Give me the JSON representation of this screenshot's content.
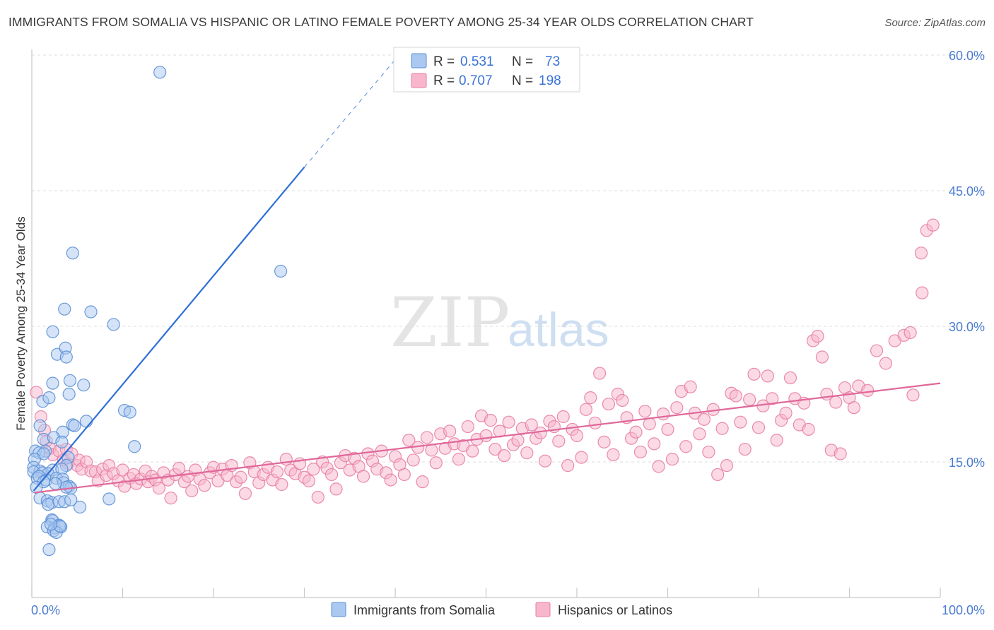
{
  "header": {
    "title": "IMMIGRANTS FROM SOMALIA VS HISPANIC OR LATINO FEMALE POVERTY AMONG 25-34 YEAR OLDS CORRELATION CHART",
    "source": "Source: ZipAtlas.com"
  },
  "watermark": {
    "zip": "ZIP",
    "atlas": "atlas"
  },
  "legend": {
    "rows": [
      {
        "r_label": "R =",
        "r_value": "0.531",
        "n_label": "N =",
        "n_value": "73"
      },
      {
        "r_label": "R =",
        "r_value": "0.707",
        "n_label": "N =",
        "n_value": "198"
      }
    ]
  },
  "bottom_legend": [
    "Immigrants from Somalia",
    "Hispanics or Latinos"
  ],
  "colors": {
    "somalia_fill": "#aac8f0",
    "somalia_stroke": "#5b8fd6",
    "somalia_line": "#2f6fd6",
    "hispanic_fill": "#f7b6cc",
    "hispanic_stroke": "#e87ea4",
    "hispanic_line": "#e0679a",
    "tick_text": "#4a7bd1",
    "grid": "#dcdcdc"
  },
  "chart_data": {
    "type": "scatter",
    "title": "IMMIGRANTS FROM SOMALIA VS HISPANIC OR LATINO FEMALE POVERTY AMONG 25-34 YEAR OLDS CORRELATION CHART",
    "xlabel": "",
    "ylabel": "Female Poverty Among 25-34 Year Olds",
    "xlim": [
      0,
      100
    ],
    "ylim": [
      0,
      60
    ],
    "x_tick_labels": [
      "0.0%",
      "100.0%"
    ],
    "y_ticks": [
      15,
      30,
      45,
      60
    ],
    "y_tick_labels": [
      "15.0%",
      "30.0%",
      "45.0%",
      "60.0%"
    ],
    "grid": true,
    "legend_position": "top-center",
    "series": [
      {
        "name": "Immigrants from Somalia",
        "r": 0.531,
        "n": 73,
        "trend": {
          "x": [
            0.2,
            30
          ],
          "y": [
            11.8,
            47.6
          ],
          "dashed_to": {
            "x": 40,
            "y": 59.5
          }
        },
        "points": [
          [
            14.1,
            58.1
          ],
          [
            27.4,
            36.1
          ],
          [
            4.5,
            38.1
          ],
          [
            3.6,
            31.9
          ],
          [
            6.5,
            31.6
          ],
          [
            9.0,
            30.2
          ],
          [
            2.3,
            29.4
          ],
          [
            2.8,
            26.9
          ],
          [
            3.7,
            27.6
          ],
          [
            3.8,
            26.6
          ],
          [
            2.3,
            23.7
          ],
          [
            4.2,
            24.0
          ],
          [
            5.7,
            23.5
          ],
          [
            4.1,
            22.5
          ],
          [
            1.2,
            21.7
          ],
          [
            1.9,
            22.1
          ],
          [
            10.2,
            20.7
          ],
          [
            10.8,
            20.5
          ],
          [
            4.5,
            19.1
          ],
          [
            6.0,
            19.5
          ],
          [
            4.7,
            19.0
          ],
          [
            0.9,
            19.0
          ],
          [
            3.4,
            18.3
          ],
          [
            1.3,
            17.5
          ],
          [
            2.4,
            17.7
          ],
          [
            11.3,
            16.7
          ],
          [
            3.3,
            17.2
          ],
          [
            0.4,
            16.2
          ],
          [
            1.5,
            16.2
          ],
          [
            0.8,
            16.0
          ],
          [
            1.3,
            15.9
          ],
          [
            4.0,
            15.5
          ],
          [
            0.3,
            15.3
          ],
          [
            0.2,
            14.4
          ],
          [
            0.9,
            14.0
          ],
          [
            0.2,
            13.9
          ],
          [
            1.2,
            13.8
          ],
          [
            2.3,
            14.1
          ],
          [
            3.8,
            14.6
          ],
          [
            1.8,
            13.7
          ],
          [
            3.3,
            14.2
          ],
          [
            0.6,
            13.2
          ],
          [
            0.8,
            13.4
          ],
          [
            1.6,
            13.0
          ],
          [
            1.3,
            12.8
          ],
          [
            2.7,
            13.2
          ],
          [
            3.4,
            13.1
          ],
          [
            3.5,
            12.7
          ],
          [
            0.5,
            12.2
          ],
          [
            4.1,
            12.3
          ],
          [
            4.3,
            12.1
          ],
          [
            3.8,
            12.2
          ],
          [
            2.6,
            12.6
          ],
          [
            0.9,
            11.0
          ],
          [
            1.7,
            10.7
          ],
          [
            2.2,
            10.5
          ],
          [
            1.8,
            10.3
          ],
          [
            3.0,
            10.6
          ],
          [
            3.6,
            10.6
          ],
          [
            4.3,
            10.8
          ],
          [
            5.3,
            10.0
          ],
          [
            8.5,
            10.9
          ],
          [
            2.2,
            8.6
          ],
          [
            2.3,
            8.5
          ],
          [
            1.7,
            7.8
          ],
          [
            2.5,
            7.7
          ],
          [
            3.0,
            8.0
          ],
          [
            3.2,
            7.8
          ],
          [
            2.4,
            7.4
          ],
          [
            2.7,
            7.2
          ],
          [
            3.1,
            7.9
          ],
          [
            1.9,
            5.3
          ],
          [
            2.1,
            8.1
          ]
        ]
      },
      {
        "name": "Hispanics or Latinos",
        "r": 0.707,
        "n": 198,
        "trend": {
          "x": [
            0.3,
            100
          ],
          "y": [
            11.6,
            23.7
          ]
        },
        "points": [
          [
            0.5,
            22.7
          ],
          [
            1.0,
            20.0
          ],
          [
            1.4,
            18.5
          ],
          [
            1.6,
            17.3
          ],
          [
            2.0,
            16.5
          ],
          [
            2.3,
            15.8
          ],
          [
            3.0,
            16.2
          ],
          [
            3.5,
            15.2
          ],
          [
            3.8,
            16.4
          ],
          [
            4.0,
            14.8
          ],
          [
            4.4,
            15.9
          ],
          [
            5.0,
            14.6
          ],
          [
            5.2,
            15.2
          ],
          [
            5.5,
            14.2
          ],
          [
            6.0,
            15.0
          ],
          [
            6.5,
            14.0
          ],
          [
            7.0,
            13.9
          ],
          [
            7.3,
            12.9
          ],
          [
            7.8,
            14.2
          ],
          [
            8.2,
            13.5
          ],
          [
            8.5,
            14.6
          ],
          [
            9.0,
            13.7
          ],
          [
            9.5,
            12.9
          ],
          [
            10.0,
            14.1
          ],
          [
            10.2,
            12.3
          ],
          [
            10.8,
            13.2
          ],
          [
            11.2,
            13.6
          ],
          [
            11.5,
            12.6
          ],
          [
            12.0,
            13.1
          ],
          [
            12.5,
            14.0
          ],
          [
            12.8,
            12.8
          ],
          [
            13.2,
            13.4
          ],
          [
            13.6,
            13.0
          ],
          [
            14.0,
            12.1
          ],
          [
            14.5,
            13.8
          ],
          [
            15.0,
            13.0
          ],
          [
            15.3,
            11.0
          ],
          [
            15.8,
            13.6
          ],
          [
            16.2,
            14.3
          ],
          [
            16.8,
            12.8
          ],
          [
            17.2,
            13.4
          ],
          [
            17.6,
            11.8
          ],
          [
            18.0,
            14.1
          ],
          [
            18.5,
            13.1
          ],
          [
            19.0,
            12.4
          ],
          [
            19.6,
            13.8
          ],
          [
            20.0,
            14.4
          ],
          [
            20.5,
            12.9
          ],
          [
            21.0,
            14.2
          ],
          [
            21.5,
            13.5
          ],
          [
            22.0,
            14.6
          ],
          [
            22.5,
            12.8
          ],
          [
            23.0,
            13.3
          ],
          [
            23.5,
            11.5
          ],
          [
            24.0,
            14.9
          ],
          [
            24.5,
            13.9
          ],
          [
            25.0,
            12.7
          ],
          [
            25.5,
            13.6
          ],
          [
            26.0,
            14.4
          ],
          [
            26.5,
            13.0
          ],
          [
            27.0,
            13.9
          ],
          [
            27.5,
            12.5
          ],
          [
            28.0,
            15.3
          ],
          [
            28.5,
            14.1
          ],
          [
            29.0,
            13.7
          ],
          [
            29.5,
            14.8
          ],
          [
            30.0,
            13.3
          ],
          [
            30.5,
            12.9
          ],
          [
            31.0,
            14.2
          ],
          [
            31.5,
            11.1
          ],
          [
            32.0,
            15.0
          ],
          [
            32.5,
            14.3
          ],
          [
            33.0,
            13.6
          ],
          [
            33.5,
            12.0
          ],
          [
            34.0,
            14.9
          ],
          [
            34.5,
            15.7
          ],
          [
            35.0,
            14.1
          ],
          [
            35.5,
            15.4
          ],
          [
            36.0,
            14.5
          ],
          [
            36.5,
            13.4
          ],
          [
            37.0,
            15.9
          ],
          [
            37.5,
            15.1
          ],
          [
            38.0,
            14.2
          ],
          [
            38.5,
            16.2
          ],
          [
            39.0,
            13.8
          ],
          [
            39.5,
            13.0
          ],
          [
            40.0,
            15.6
          ],
          [
            40.5,
            14.7
          ],
          [
            41.0,
            13.6
          ],
          [
            41.5,
            17.4
          ],
          [
            42.0,
            15.2
          ],
          [
            42.5,
            16.6
          ],
          [
            43.0,
            12.8
          ],
          [
            43.5,
            17.7
          ],
          [
            44.0,
            16.3
          ],
          [
            44.5,
            14.9
          ],
          [
            45.0,
            18.1
          ],
          [
            45.5,
            16.5
          ],
          [
            46.0,
            18.4
          ],
          [
            46.5,
            17.0
          ],
          [
            47.0,
            15.3
          ],
          [
            47.5,
            16.8
          ],
          [
            48.0,
            18.9
          ],
          [
            48.5,
            16.2
          ],
          [
            49.0,
            17.5
          ],
          [
            49.5,
            20.1
          ],
          [
            50.0,
            17.9
          ],
          [
            50.5,
            19.6
          ],
          [
            51.0,
            16.4
          ],
          [
            51.5,
            18.4
          ],
          [
            52.0,
            15.7
          ],
          [
            52.5,
            19.4
          ],
          [
            53.0,
            16.9
          ],
          [
            53.5,
            17.4
          ],
          [
            54.0,
            18.7
          ],
          [
            54.5,
            16.0
          ],
          [
            55.0,
            19.1
          ],
          [
            55.5,
            17.6
          ],
          [
            56.0,
            18.2
          ],
          [
            56.5,
            15.1
          ],
          [
            57.0,
            19.5
          ],
          [
            57.5,
            18.9
          ],
          [
            58.0,
            17.3
          ],
          [
            58.5,
            20.0
          ],
          [
            59.0,
            14.6
          ],
          [
            59.5,
            18.6
          ],
          [
            60.0,
            17.9
          ],
          [
            60.5,
            15.5
          ],
          [
            61.0,
            20.8
          ],
          [
            61.5,
            22.1
          ],
          [
            62.0,
            19.3
          ],
          [
            62.5,
            24.8
          ],
          [
            63.0,
            17.2
          ],
          [
            63.5,
            21.4
          ],
          [
            64.0,
            15.8
          ],
          [
            64.5,
            22.5
          ],
          [
            65.0,
            21.8
          ],
          [
            65.5,
            19.9
          ],
          [
            66.0,
            17.6
          ],
          [
            66.5,
            18.3
          ],
          [
            67.0,
            16.1
          ],
          [
            67.5,
            20.6
          ],
          [
            68.0,
            19.2
          ],
          [
            68.5,
            17.0
          ],
          [
            69.0,
            14.5
          ],
          [
            69.5,
            20.3
          ],
          [
            70.0,
            18.6
          ],
          [
            70.5,
            15.3
          ],
          [
            71.0,
            21.0
          ],
          [
            71.5,
            22.8
          ],
          [
            72.0,
            16.7
          ],
          [
            72.5,
            23.3
          ],
          [
            73.0,
            20.4
          ],
          [
            73.5,
            18.1
          ],
          [
            74.0,
            19.7
          ],
          [
            74.5,
            16.1
          ],
          [
            75.0,
            20.8
          ],
          [
            75.5,
            13.6
          ],
          [
            76.0,
            18.7
          ],
          [
            76.5,
            14.6
          ],
          [
            77.0,
            22.6
          ],
          [
            77.5,
            22.3
          ],
          [
            78.0,
            19.4
          ],
          [
            78.5,
            16.4
          ],
          [
            79.0,
            21.9
          ],
          [
            79.5,
            24.7
          ],
          [
            80.0,
            18.8
          ],
          [
            80.5,
            21.2
          ],
          [
            81.0,
            24.5
          ],
          [
            81.5,
            22.0
          ],
          [
            82.0,
            17.4
          ],
          [
            82.5,
            19.6
          ],
          [
            83.0,
            20.4
          ],
          [
            83.5,
            24.3
          ],
          [
            84.0,
            22.0
          ],
          [
            84.5,
            19.1
          ],
          [
            85.0,
            21.5
          ],
          [
            85.5,
            18.6
          ],
          [
            86.0,
            28.4
          ],
          [
            86.5,
            28.9
          ],
          [
            87.0,
            26.6
          ],
          [
            87.5,
            22.5
          ],
          [
            88.0,
            16.3
          ],
          [
            88.5,
            21.6
          ],
          [
            89.0,
            15.9
          ],
          [
            89.5,
            23.2
          ],
          [
            90.0,
            22.1
          ],
          [
            90.5,
            21.0
          ],
          [
            91.0,
            23.4
          ],
          [
            92.0,
            22.9
          ],
          [
            93.0,
            27.3
          ],
          [
            94.0,
            25.9
          ],
          [
            95.0,
            28.4
          ],
          [
            96.0,
            29.0
          ],
          [
            97.0,
            22.4
          ],
          [
            98.0,
            33.7
          ],
          [
            98.5,
            40.6
          ],
          [
            99.2,
            41.2
          ],
          [
            97.9,
            38.1
          ],
          [
            96.7,
            29.3
          ]
        ]
      }
    ]
  }
}
